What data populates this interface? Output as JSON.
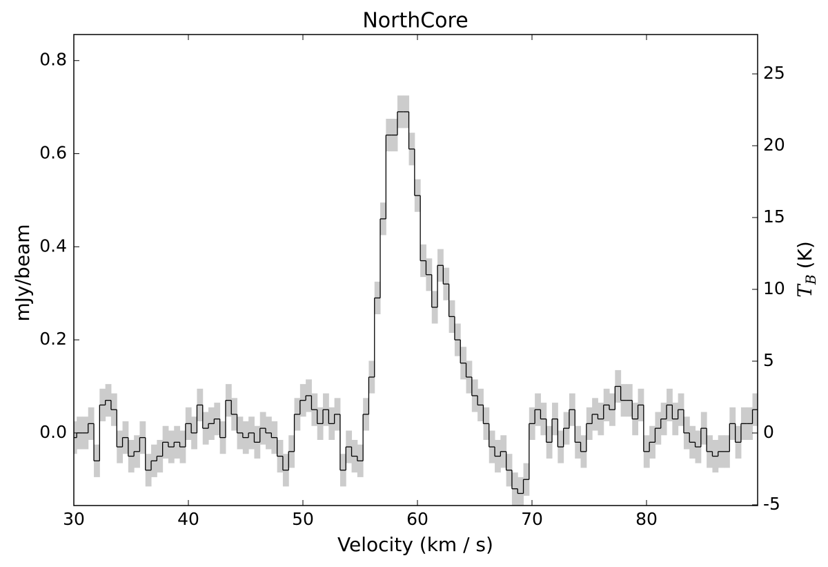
{
  "chart_data": {
    "type": "step",
    "title": "NorthCore",
    "xlabel": "Velocity (km / s)",
    "ylabel": "mJy/beam",
    "y2label": {
      "symbol": "T",
      "subscript": "B",
      "unit": "(K)"
    },
    "xlim": [
      30,
      89.7
    ],
    "xticks": [
      30,
      40,
      50,
      60,
      70,
      80
    ],
    "ylim": [
      -0.156,
      0.856
    ],
    "yticks": [
      {
        "value": 0,
        "label": "0.0"
      },
      {
        "value": 0.2,
        "label": "0.2"
      },
      {
        "value": 0.4,
        "label": "0.4"
      },
      {
        "value": 0.6,
        "label": "0.6"
      },
      {
        "value": 0.8,
        "label": "0.8"
      }
    ],
    "y2lim": [
      -5.05,
      27.74
    ],
    "y2ticks": [
      -5,
      0,
      5,
      10,
      15,
      20,
      25
    ],
    "series": [
      {
        "color": "#000000",
        "band_color": "#cccccc",
        "error": 0.035,
        "channel_width": 0.5,
        "x": [
          30,
          30.5,
          31,
          31.5,
          32,
          32.5,
          33,
          33.5,
          34,
          34.5,
          35,
          35.5,
          36,
          36.5,
          37,
          37.5,
          38,
          38.5,
          39,
          39.5,
          40,
          40.5,
          41,
          41.5,
          42,
          42.5,
          43,
          43.5,
          44,
          44.5,
          45,
          45.5,
          46,
          46.5,
          47,
          47.5,
          48,
          48.5,
          49,
          49.5,
          50,
          50.5,
          51,
          51.5,
          52,
          52.5,
          53,
          53.5,
          54,
          54.5,
          55,
          55.5,
          56,
          56.5,
          57,
          57.5,
          58,
          58.5,
          59,
          59.5,
          60,
          60.5,
          61,
          61.5,
          62,
          62.5,
          63,
          63.5,
          64,
          64.5,
          65,
          65.5,
          66,
          66.5,
          67,
          67.5,
          68,
          68.5,
          69,
          69.5,
          70,
          70.5,
          71,
          71.5,
          72,
          72.5,
          73,
          73.5,
          74,
          74.5,
          75,
          75.5,
          76,
          76.5,
          77,
          77.5,
          78,
          78.5,
          79,
          79.5,
          80,
          80.5,
          81,
          81.5,
          82,
          82.5,
          83,
          83.5,
          84,
          84.5,
          85,
          85.5,
          86,
          86.5,
          87,
          87.5,
          88,
          88.5,
          89,
          89.5
        ],
        "values": [
          -0.01,
          0.0,
          0.0,
          0.02,
          -0.06,
          0.06,
          0.07,
          0.05,
          -0.03,
          -0.01,
          -0.05,
          -0.04,
          -0.01,
          -0.08,
          -0.06,
          -0.05,
          -0.02,
          -0.03,
          -0.02,
          -0.03,
          0.02,
          0.0,
          0.06,
          0.01,
          0.02,
          0.03,
          -0.01,
          0.07,
          0.04,
          0.0,
          -0.01,
          0.0,
          -0.02,
          0.01,
          0.0,
          -0.01,
          -0.05,
          -0.08,
          -0.04,
          0.04,
          0.07,
          0.08,
          0.05,
          0.02,
          0.05,
          0.02,
          0.04,
          -0.08,
          -0.03,
          -0.05,
          -0.06,
          0.04,
          0.12,
          0.29,
          0.46,
          0.64,
          0.64,
          0.69,
          0.69,
          0.61,
          0.51,
          0.37,
          0.34,
          0.27,
          0.36,
          0.32,
          0.25,
          0.2,
          0.15,
          0.12,
          0.08,
          0.06,
          0.02,
          -0.03,
          -0.05,
          -0.04,
          -0.08,
          -0.12,
          -0.13,
          -0.1,
          0.02,
          0.05,
          0.03,
          -0.02,
          0.03,
          -0.03,
          0.01,
          0.05,
          -0.02,
          -0.04,
          0.02,
          0.04,
          0.03,
          0.06,
          0.05,
          0.1,
          0.07,
          0.07,
          0.03,
          0.06,
          -0.04,
          -0.02,
          0.01,
          0.03,
          0.06,
          0.03,
          0.05,
          0.0,
          -0.02,
          -0.03,
          0.01,
          -0.04,
          -0.05,
          -0.04,
          -0.04,
          0.02,
          -0.02,
          0.02,
          0.02,
          0.05
        ]
      }
    ]
  }
}
